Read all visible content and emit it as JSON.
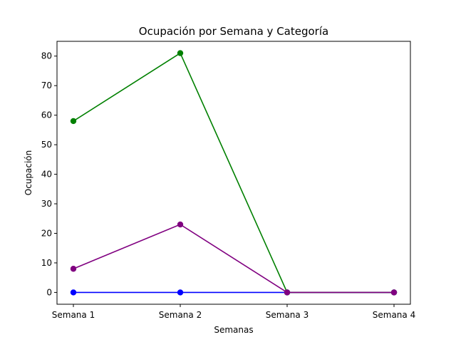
{
  "chart_data": {
    "type": "line",
    "title": "Ocupación por Semana y Categoría",
    "xlabel": "Semanas",
    "ylabel": "Ocupación",
    "categories": [
      "Semana 1",
      "Semana 2",
      "Semana 3",
      "Semana 4"
    ],
    "ylim": [
      -4,
      85
    ],
    "yticks": [
      0,
      10,
      20,
      30,
      40,
      50,
      60,
      70,
      80
    ],
    "grid": false,
    "series": [
      {
        "color": "#0000ff",
        "values": [
          0,
          0,
          0,
          0
        ]
      },
      {
        "color": "#008000",
        "values": [
          58,
          81,
          0,
          0
        ]
      },
      {
        "color": "#800080",
        "values": [
          8,
          23,
          0,
          0
        ]
      }
    ]
  }
}
